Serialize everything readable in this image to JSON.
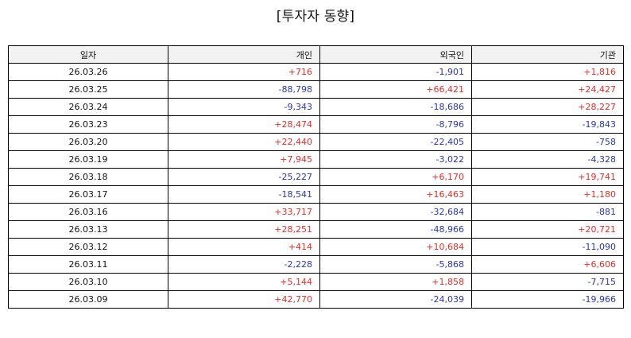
{
  "title": "[투자자 동향]",
  "colors": {
    "positive": "#e0302a",
    "negative": "#2c35b3",
    "header_bg": "#f2f2f2",
    "border": "#000000"
  },
  "table": {
    "headers": {
      "date": "일자",
      "individual": "개인",
      "foreign": "외국인",
      "institution": "기관"
    },
    "rows": [
      {
        "date": "26.03.26",
        "individual": "+716",
        "foreign": "-1,901",
        "institution": "+1,816"
      },
      {
        "date": "26.03.25",
        "individual": "-88,798",
        "foreign": "+66,421",
        "institution": "+24,427"
      },
      {
        "date": "26.03.24",
        "individual": "-9,343",
        "foreign": "-18,686",
        "institution": "+28,227"
      },
      {
        "date": "26.03.23",
        "individual": "+28,474",
        "foreign": "-8,796",
        "institution": "-19,843"
      },
      {
        "date": "26.03.20",
        "individual": "+22,440",
        "foreign": "-22,405",
        "institution": "-758"
      },
      {
        "date": "26.03.19",
        "individual": "+7,945",
        "foreign": "-3,022",
        "institution": "-4,328"
      },
      {
        "date": "26.03.18",
        "individual": "-25,227",
        "foreign": "+6,170",
        "institution": "+19,741"
      },
      {
        "date": "26.03.17",
        "individual": "-18,541",
        "foreign": "+16,463",
        "institution": "+1,180"
      },
      {
        "date": "26.03.16",
        "individual": "+33,717",
        "foreign": "-32,684",
        "institution": "-881"
      },
      {
        "date": "26.03.13",
        "individual": "+28,251",
        "foreign": "-48,966",
        "institution": "+20,721"
      },
      {
        "date": "26.03.12",
        "individual": "+414",
        "foreign": "+10,684",
        "institution": "-11,090"
      },
      {
        "date": "26.03.11",
        "individual": "-2,228",
        "foreign": "-5,868",
        "institution": "+6,606"
      },
      {
        "date": "26.03.10",
        "individual": "+5,144",
        "foreign": "+1,858",
        "institution": "-7,715"
      },
      {
        "date": "26.03.09",
        "individual": "+42,770",
        "foreign": "-24,039",
        "institution": "-19,966"
      }
    ]
  }
}
